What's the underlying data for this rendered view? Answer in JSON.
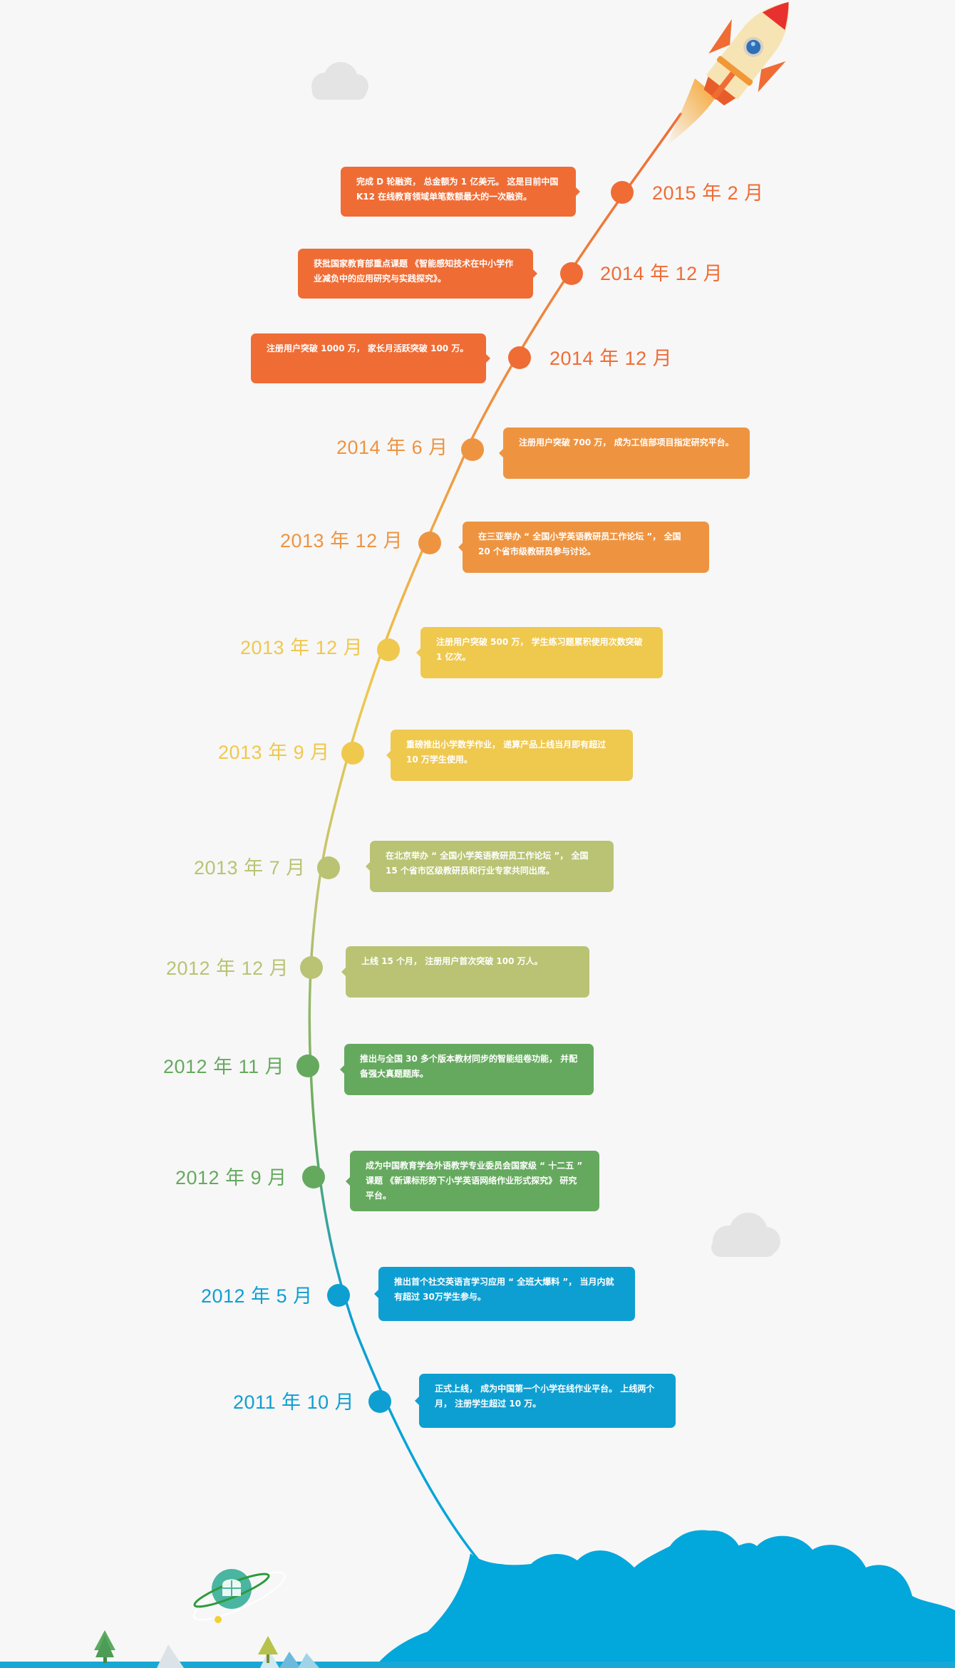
{
  "colors": {
    "orange": "#ef6c35",
    "light_orange": "#ee9441",
    "yellow": "#efc84e",
    "olive": "#b9c373",
    "green": "#65a95e",
    "blue": "#0e9fd2",
    "ground_blue": "#02a7dc",
    "background": "#f7f7f7"
  },
  "milestones": [
    {
      "date": "2015 年 2 月",
      "color": "#ef6c35",
      "side": "left",
      "text": "完成 D 轮融资， 总金额为 1 亿美元。 这是目前中国 K12 在线教育领域单笔数额最大的一次融资。"
    },
    {
      "date": "2014 年 12 月",
      "color": "#ef6c35",
      "side": "left",
      "text": "获批国家教育部重点课题 《智能感知技术在中小学作业减负中的应用研究与实践探究》。"
    },
    {
      "date": "2014 年 12 月",
      "color": "#ef6c35",
      "side": "left",
      "text": "注册用户突破 1000 万， 家长月活跃突破 100 万。"
    },
    {
      "date": "2014 年 6 月",
      "color": "#ee9441",
      "side": "right",
      "text": "注册用户突破 700 万， 成为工信部项目指定研究平台。"
    },
    {
      "date": "2013 年 12 月",
      "color": "#ee9441",
      "side": "right",
      "text": "在三亚举办 “ 全国小学英语教研员工作论坛 ”， 全国 20 个省市级教研员参与讨论。"
    },
    {
      "date": "2013 年 12 月",
      "color": "#efc84e",
      "side": "right",
      "text": "注册用户突破 500 万， 学生练习题累积使用次数突破 1 亿次。"
    },
    {
      "date": "2013 年 9 月",
      "color": "#efc84e",
      "side": "right",
      "text": "重磅推出小学数学作业， 递算产品上线当月即有超过 10 万学生使用。"
    },
    {
      "date": "2013 年 7 月",
      "color": "#b9c373",
      "side": "right",
      "text": "在北京举办 “ 全国小学英语教研员工作论坛 ”， 全国 15 个省市区级教研员和行业专家共同出席。"
    },
    {
      "date": "2012 年 12 月",
      "color": "#b9c373",
      "side": "right",
      "text": "上线 15 个月， 注册用户首次突破 100 万人。"
    },
    {
      "date": "2012 年 11 月",
      "color": "#65a95e",
      "side": "right",
      "text": "推出与全国 30 多个版本教材同步的智能组卷功能， 并配备强大真题题库。"
    },
    {
      "date": "2012 年 9 月",
      "color": "#65a95e",
      "side": "right",
      "text": "成为中国教育学会外语教学专业委员会国家级 “ 十二五 ” 课题 《新课标形势下小学英语网络作业形式探究》 研究平台。"
    },
    {
      "date": "2012 年 5 月",
      "color": "#0e9fd2",
      "side": "right",
      "text": "推出首个社交英语言学习应用 “ 全班大爆料 ”， 当月内就有超过 30万学生参与。"
    },
    {
      "date": "2011 年 10 月",
      "color": "#0e9fd2",
      "side": "right",
      "text": "正式上线， 成为中国第一个小学在线作业平台。 上线两个月， 注册学生超过 10 万。"
    }
  ],
  "icons": {
    "rocket": "rocket-icon",
    "cloud": "cloud-icon",
    "planet": "planet-icon",
    "tree": "tree-icon",
    "mountain": "mountain-icon"
  }
}
